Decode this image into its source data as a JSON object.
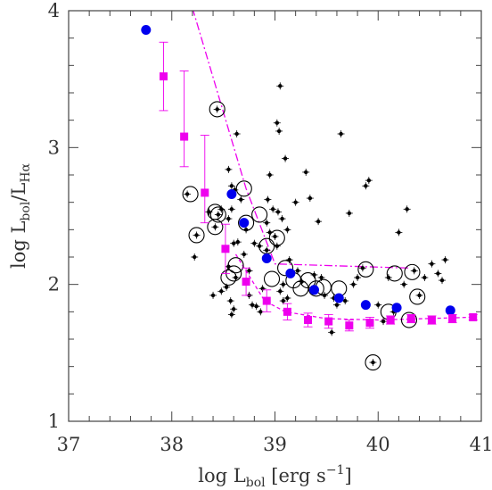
{
  "chart_data": {
    "type": "scatter",
    "xlim": [
      37,
      41
    ],
    "ylim": [
      1,
      4
    ],
    "xticks": [
      37,
      38,
      39,
      40,
      41
    ],
    "yticks": [
      1,
      2,
      3,
      4
    ],
    "xlabel": {
      "main": "log L",
      "sub": "bol",
      "rest": " [erg s",
      "sup": "−1",
      "close": "]"
    },
    "ylabel": {
      "main": "log L",
      "sub": "bol",
      "slash": "/L",
      "sub2": "Hα"
    },
    "colors": {
      "black": "#000000",
      "blue": "#0000ee",
      "magenta": "#ee00ee",
      "axis": "#444444"
    },
    "series": [
      {
        "marker": "small-dot-errorbars",
        "color": "#000000",
        "points": [
          [
            38.44,
            3.28
          ],
          [
            38.55,
            2.84
          ],
          [
            38.58,
            2.72
          ],
          [
            38.61,
            2.69
          ],
          [
            38.63,
            3.1
          ],
          [
            38.67,
            2.62
          ],
          [
            38.58,
            2.55
          ],
          [
            38.64,
            2.31
          ],
          [
            38.7,
            2.22
          ],
          [
            38.72,
            2.4
          ],
          [
            38.48,
            2.55
          ],
          [
            38.55,
            2.48
          ],
          [
            38.6,
            2.3
          ],
          [
            38.62,
            2.05
          ],
          [
            38.55,
            2.13
          ],
          [
            38.4,
            1.92
          ],
          [
            38.48,
            1.95
          ],
          [
            38.53,
            1.98
          ],
          [
            38.57,
            1.88
          ],
          [
            38.6,
            1.82
          ],
          [
            38.58,
            1.78
          ],
          [
            38.75,
            1.92
          ],
          [
            38.78,
            1.85
          ],
          [
            38.82,
            1.84
          ],
          [
            38.86,
            1.8
          ],
          [
            38.88,
            1.97
          ],
          [
            38.75,
            2.1
          ],
          [
            38.8,
            2.3
          ],
          [
            38.85,
            2.28
          ],
          [
            38.92,
            2.25
          ],
          [
            38.92,
            2.45
          ],
          [
            38.95,
            2.38
          ],
          [
            38.98,
            2.55
          ],
          [
            39.0,
            2.35
          ],
          [
            39.02,
            2.28
          ],
          [
            39.03,
            2.53
          ],
          [
            39.02,
            3.18
          ],
          [
            39.04,
            3.12
          ],
          [
            39.05,
            3.45
          ],
          [
            39.1,
            2.92
          ],
          [
            39.07,
            2.48
          ],
          [
            39.12,
            2.4
          ],
          [
            39.14,
            2.18
          ],
          [
            39.08,
            2.0
          ],
          [
            39.05,
            1.95
          ],
          [
            39.08,
            1.88
          ],
          [
            39.12,
            1.9
          ],
          [
            38.95,
            2.8
          ],
          [
            38.93,
            2.62
          ],
          [
            39.2,
            2.6
          ],
          [
            39.22,
            2.1
          ],
          [
            39.26,
            2.02
          ],
          [
            39.3,
            2.82
          ],
          [
            39.34,
            2.63
          ],
          [
            39.38,
            2.07
          ],
          [
            39.45,
            2.05
          ],
          [
            39.42,
            2.46
          ],
          [
            39.48,
            1.92
          ],
          [
            39.52,
            1.72
          ],
          [
            39.55,
            1.65
          ],
          [
            39.57,
            1.9
          ],
          [
            39.6,
            1.85
          ],
          [
            39.64,
            3.1
          ],
          [
            39.68,
            1.88
          ],
          [
            39.72,
            2.52
          ],
          [
            39.76,
            2.0
          ],
          [
            39.8,
            2.05
          ],
          [
            39.85,
            2.12
          ],
          [
            39.88,
            2.72
          ],
          [
            39.91,
            2.76
          ],
          [
            39.95,
            1.43
          ],
          [
            40.0,
            1.85
          ],
          [
            40.05,
            1.73
          ],
          [
            40.1,
            2.05
          ],
          [
            40.15,
            1.8
          ],
          [
            40.2,
            2.38
          ],
          [
            40.25,
            2.0
          ],
          [
            40.28,
            2.55
          ],
          [
            40.32,
            1.75
          ],
          [
            40.35,
            2.1
          ],
          [
            40.4,
            1.92
          ],
          [
            40.45,
            2.05
          ],
          [
            40.52,
            2.15
          ],
          [
            40.58,
            2.08
          ],
          [
            40.62,
            2.03
          ],
          [
            40.65,
            2.18
          ],
          [
            38.22,
            2.2
          ],
          [
            38.15,
            2.66
          ],
          [
            38.24,
            2.36
          ],
          [
            38.42,
            2.42
          ],
          [
            38.36,
            2.53
          ],
          [
            38.45,
            2.51
          ]
        ]
      },
      {
        "marker": "open-circle",
        "color": "#000000",
        "points": [
          [
            38.44,
            3.28
          ],
          [
            38.18,
            2.66
          ],
          [
            38.24,
            2.36
          ],
          [
            38.42,
            2.53
          ],
          [
            38.45,
            2.51
          ],
          [
            38.42,
            2.42
          ],
          [
            38.55,
            2.05
          ],
          [
            38.6,
            2.08
          ],
          [
            38.62,
            2.14
          ],
          [
            38.7,
            2.7
          ],
          [
            38.72,
            2.45
          ],
          [
            38.85,
            2.51
          ],
          [
            38.92,
            2.28
          ],
          [
            38.97,
            2.04
          ],
          [
            39.02,
            2.34
          ],
          [
            39.1,
            2.12
          ],
          [
            39.18,
            2.03
          ],
          [
            39.25,
            1.97
          ],
          [
            39.32,
            2.03
          ],
          [
            39.4,
            1.97
          ],
          [
            39.47,
            1.98
          ],
          [
            39.62,
            1.97
          ],
          [
            39.88,
            2.11
          ],
          [
            39.95,
            1.43
          ],
          [
            40.1,
            1.8
          ],
          [
            40.16,
            2.08
          ],
          [
            40.3,
            1.74
          ],
          [
            40.33,
            2.09
          ],
          [
            40.38,
            1.91
          ]
        ]
      },
      {
        "marker": "blue-dot",
        "color": "#0000ee",
        "points": [
          [
            37.75,
            3.86
          ],
          [
            38.58,
            2.66
          ],
          [
            38.7,
            2.45
          ],
          [
            38.92,
            2.19
          ],
          [
            39.15,
            2.08
          ],
          [
            39.38,
            1.96
          ],
          [
            39.62,
            1.9
          ],
          [
            39.88,
            1.85
          ],
          [
            40.18,
            1.83
          ],
          [
            40.7,
            1.81
          ]
        ]
      },
      {
        "marker": "magenta-square",
        "color": "#ee00ee",
        "points": [
          [
            37.92,
            3.52,
            0.25,
            0.25
          ],
          [
            38.12,
            3.08,
            0.48,
            0.22
          ],
          [
            38.32,
            2.67,
            0.42,
            0.22
          ],
          [
            38.52,
            2.26,
            0.18,
            0.18
          ],
          [
            38.72,
            2.02,
            0.1,
            0.1
          ],
          [
            38.92,
            1.88,
            0.08,
            0.08
          ],
          [
            39.12,
            1.8,
            0.06,
            0.06
          ],
          [
            39.32,
            1.74,
            0.05,
            0.05
          ],
          [
            39.52,
            1.73,
            0.05,
            0.05
          ],
          [
            39.72,
            1.7,
            0.04,
            0.04
          ],
          [
            39.92,
            1.72,
            0.04,
            0.04
          ],
          [
            40.12,
            1.74,
            0.03,
            0.03
          ],
          [
            40.32,
            1.75,
            0.03,
            0.03
          ],
          [
            40.52,
            1.74,
            0.03,
            0.03
          ],
          [
            40.72,
            1.75,
            0.03,
            0.03
          ],
          [
            40.92,
            1.76,
            0.02,
            0.02
          ]
        ]
      }
    ],
    "lines": [
      {
        "style": "dash-dot",
        "color": "#ee00ee",
        "points": [
          [
            38.2,
            4.02
          ],
          [
            38.72,
            2.7
          ],
          [
            39.0,
            2.15
          ],
          [
            40.3,
            2.12
          ]
        ]
      },
      {
        "style": "dashed",
        "color": "#ee00ee",
        "points": [
          [
            38.62,
            2.22
          ],
          [
            38.9,
            1.88
          ],
          [
            39.1,
            1.8
          ],
          [
            39.5,
            1.75
          ],
          [
            40.0,
            1.74
          ],
          [
            40.9,
            1.76
          ]
        ]
      }
    ]
  }
}
